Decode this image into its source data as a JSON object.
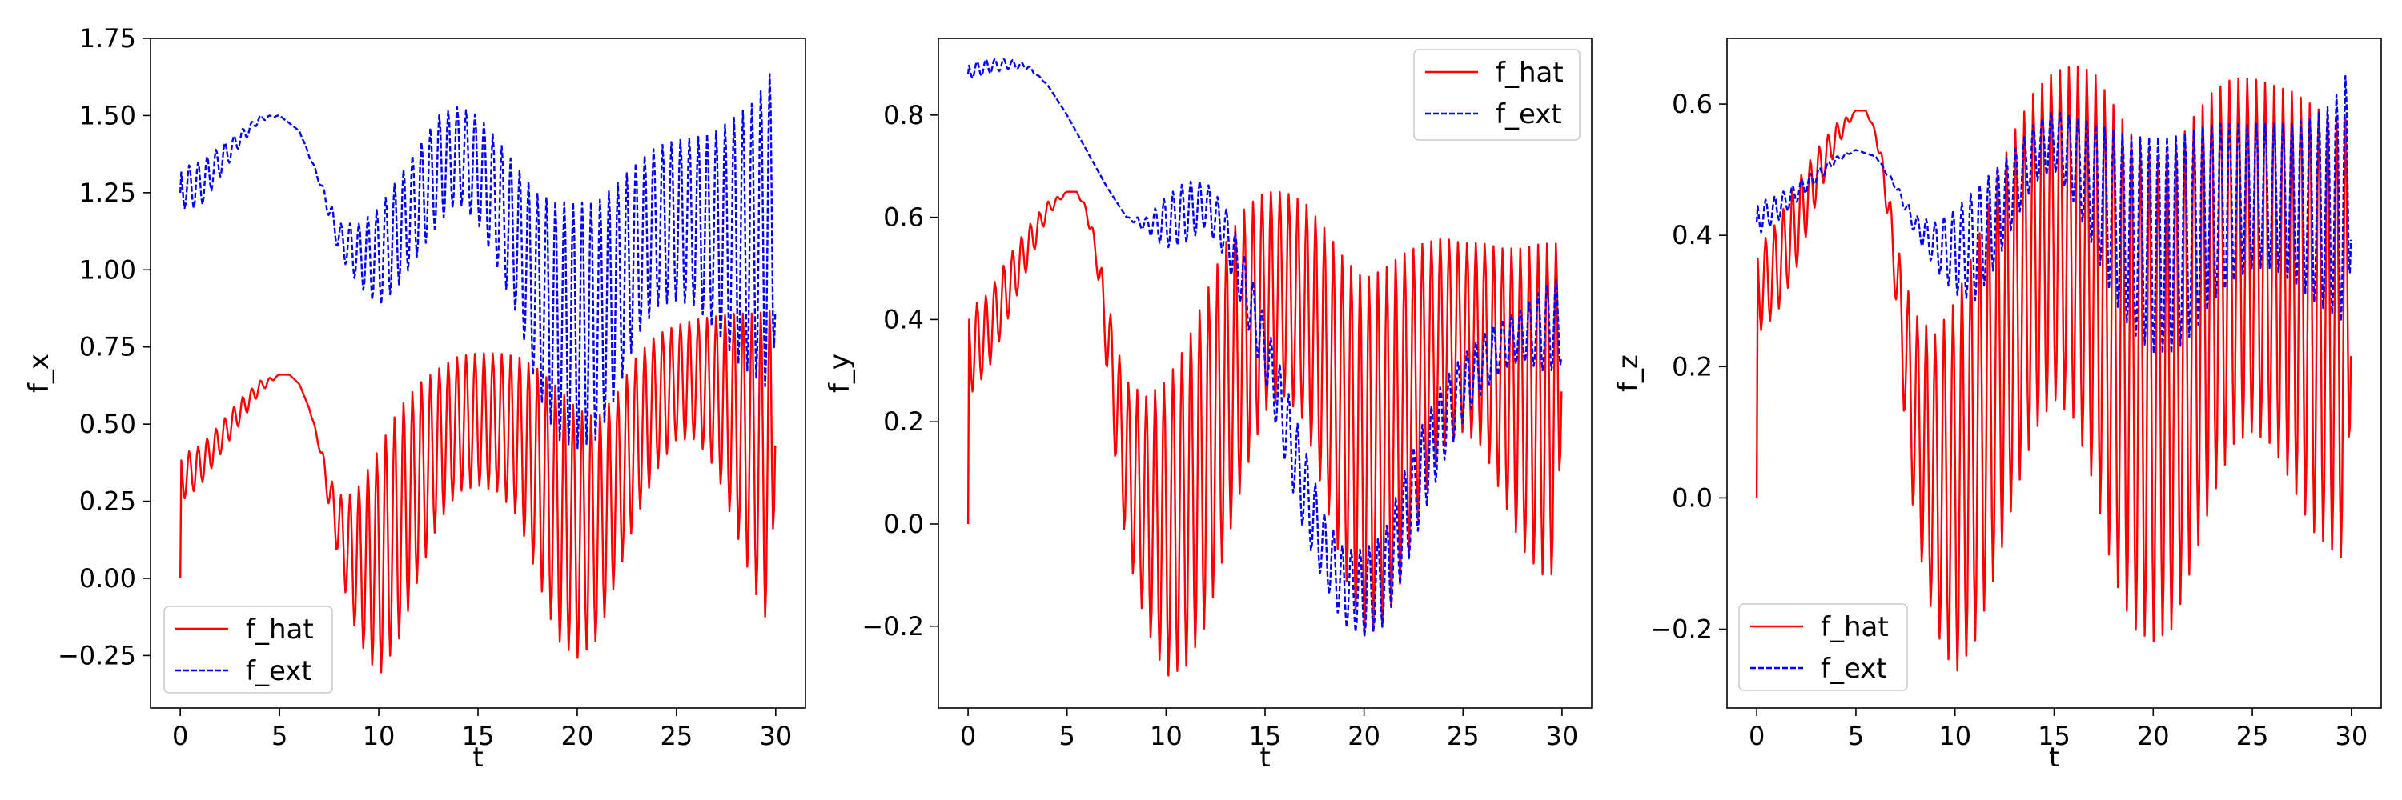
{
  "chart_data": [
    {
      "type": "line",
      "title": "",
      "xlabel": "t",
      "ylabel": "f_x",
      "xlim": [
        -1.5,
        31.5
      ],
      "ylim": [
        -0.42,
        1.75
      ],
      "xticks": [
        0,
        5,
        10,
        15,
        20,
        25,
        30
      ],
      "xtick_labels": [
        "0",
        "5",
        "10",
        "15",
        "20",
        "25",
        "30"
      ],
      "yticks": [
        -0.25,
        0.0,
        0.25,
        0.5,
        0.75,
        1.0,
        1.25,
        1.5,
        1.75
      ],
      "ytick_labels": [
        "−0.25",
        "0.00",
        "0.25",
        "0.50",
        "0.75",
        "1.00",
        "1.25",
        "1.50",
        "1.75"
      ],
      "legend_placement": "lower-left",
      "grid": false,
      "series": [
        {
          "name": "f_hat",
          "color": "#ff0000",
          "linestyle": "solid",
          "start_value": 0.0,
          "oscillation_period": 0.45,
          "envelope_x": [
            0.05,
            1,
            2,
            3,
            4,
            5,
            5.5,
            6,
            6.5,
            7,
            7.3,
            7.6,
            8,
            8.5,
            9,
            10,
            11,
            12,
            13,
            14,
            15,
            16,
            17,
            18,
            19,
            20,
            21,
            22,
            23,
            24,
            25,
            26,
            27,
            28,
            29,
            29.8,
            30
          ],
          "envelope_upper": [
            0.4,
            0.43,
            0.5,
            0.58,
            0.64,
            0.66,
            0.66,
            0.63,
            0.55,
            0.45,
            0.38,
            0.32,
            0.27,
            0.27,
            0.3,
            0.42,
            0.55,
            0.63,
            0.68,
            0.72,
            0.73,
            0.73,
            0.72,
            0.68,
            0.62,
            0.55,
            0.52,
            0.6,
            0.72,
            0.79,
            0.82,
            0.84,
            0.85,
            0.86,
            0.86,
            0.87,
            0.5
          ],
          "envelope_lower": [
            0.25,
            0.3,
            0.4,
            0.5,
            0.6,
            0.66,
            0.66,
            0.63,
            0.55,
            0.42,
            0.3,
            0.18,
            0.05,
            -0.1,
            -0.2,
            -0.32,
            -0.2,
            0.0,
            0.18,
            0.28,
            0.3,
            0.28,
            0.2,
            0.0,
            -0.2,
            -0.26,
            -0.2,
            0.0,
            0.2,
            0.35,
            0.45,
            0.45,
            0.35,
            0.15,
            -0.05,
            -0.18,
            0.5
          ]
        },
        {
          "name": "f_ext",
          "color": "#0000ff",
          "linestyle": "dashed",
          "start_value": 1.25,
          "oscillation_period": 0.45,
          "envelope_x": [
            0,
            1,
            2,
            3,
            4,
            5,
            6,
            7,
            8,
            9,
            10,
            11,
            12,
            13,
            14,
            15,
            16,
            17,
            18,
            19,
            20,
            21,
            22,
            23,
            24,
            25,
            26,
            27,
            28,
            29,
            29.8,
            30
          ],
          "envelope_upper": [
            1.33,
            1.35,
            1.4,
            1.45,
            1.5,
            1.5,
            1.45,
            1.3,
            1.15,
            1.15,
            1.2,
            1.3,
            1.4,
            1.5,
            1.53,
            1.5,
            1.42,
            1.33,
            1.25,
            1.22,
            1.22,
            1.22,
            1.28,
            1.35,
            1.4,
            1.42,
            1.43,
            1.45,
            1.5,
            1.55,
            1.65,
            1.15
          ],
          "envelope_lower": [
            1.2,
            1.2,
            1.3,
            1.4,
            1.48,
            1.5,
            1.45,
            1.28,
            1.05,
            0.95,
            0.88,
            0.95,
            1.05,
            1.15,
            1.22,
            1.15,
            1.0,
            0.85,
            0.6,
            0.45,
            0.42,
            0.45,
            0.6,
            0.78,
            0.88,
            0.9,
            0.88,
            0.8,
            0.7,
            0.65,
            0.6,
            0.85
          ]
        }
      ]
    },
    {
      "type": "line",
      "title": "",
      "xlabel": "t",
      "ylabel": "f_y",
      "xlim": [
        -1.5,
        31.5
      ],
      "ylim": [
        -0.36,
        0.95
      ],
      "xticks": [
        0,
        5,
        10,
        15,
        20,
        25,
        30
      ],
      "xtick_labels": [
        "0",
        "5",
        "10",
        "15",
        "20",
        "25",
        "30"
      ],
      "yticks": [
        -0.2,
        0.0,
        0.2,
        0.4,
        0.6,
        0.8
      ],
      "ytick_labels": [
        "−0.2",
        "0.0",
        "0.2",
        "0.4",
        "0.6",
        "0.8"
      ],
      "legend_placement": "upper-right",
      "grid": false,
      "series": [
        {
          "name": "f_hat",
          "color": "#ff0000",
          "linestyle": "solid",
          "start_value": 0.0,
          "oscillation_period": 0.45,
          "envelope_x": [
            0.05,
            1,
            2,
            3,
            4,
            5,
            5.5,
            6,
            6.5,
            7,
            7.5,
            8,
            9,
            10,
            11,
            12,
            13,
            14,
            15,
            16,
            17,
            18,
            19,
            20,
            21,
            22,
            23,
            24,
            25,
            26,
            27,
            28,
            29,
            29.8,
            30
          ],
          "envelope_upper": [
            0.42,
            0.45,
            0.52,
            0.58,
            0.63,
            0.65,
            0.65,
            0.62,
            0.55,
            0.45,
            0.35,
            0.28,
            0.25,
            0.28,
            0.35,
            0.45,
            0.55,
            0.62,
            0.65,
            0.65,
            0.63,
            0.58,
            0.52,
            0.48,
            0.5,
            0.53,
            0.55,
            0.56,
            0.55,
            0.55,
            0.54,
            0.54,
            0.55,
            0.55,
            0.3
          ],
          "envelope_lower": [
            0.25,
            0.3,
            0.4,
            0.5,
            0.6,
            0.65,
            0.65,
            0.6,
            0.5,
            0.3,
            0.1,
            -0.05,
            -0.2,
            -0.3,
            -0.28,
            -0.2,
            -0.05,
            0.1,
            0.22,
            0.25,
            0.2,
            0.05,
            -0.1,
            -0.22,
            -0.2,
            -0.1,
            0.05,
            0.15,
            0.18,
            0.15,
            0.05,
            -0.05,
            -0.1,
            -0.1,
            0.3
          ]
        },
        {
          "name": "f_ext",
          "color": "#0000ff",
          "linestyle": "dashed",
          "start_value": 0.88,
          "oscillation_period": 0.45,
          "envelope_x": [
            0,
            1,
            2,
            3,
            4,
            5,
            6,
            7,
            8,
            9,
            10,
            11,
            12,
            13,
            14,
            15,
            16,
            17,
            18,
            19,
            20,
            21,
            22,
            23,
            24,
            25,
            26,
            27,
            28,
            29,
            29.8,
            30
          ],
          "envelope_upper": [
            0.9,
            0.91,
            0.91,
            0.9,
            0.86,
            0.8,
            0.73,
            0.66,
            0.6,
            0.6,
            0.64,
            0.67,
            0.67,
            0.62,
            0.52,
            0.4,
            0.28,
            0.15,
            0.02,
            -0.05,
            -0.05,
            -0.02,
            0.1,
            0.2,
            0.28,
            0.33,
            0.37,
            0.4,
            0.42,
            0.46,
            0.48,
            0.38
          ],
          "envelope_lower": [
            0.87,
            0.88,
            0.89,
            0.89,
            0.86,
            0.8,
            0.73,
            0.66,
            0.6,
            0.57,
            0.54,
            0.55,
            0.58,
            0.52,
            0.4,
            0.28,
            0.12,
            -0.02,
            -0.12,
            -0.2,
            -0.22,
            -0.2,
            -0.1,
            0.02,
            0.12,
            0.2,
            0.26,
            0.3,
            0.32,
            0.3,
            0.3,
            0.32
          ]
        }
      ]
    },
    {
      "type": "line",
      "title": "",
      "xlabel": "t",
      "ylabel": "f_z",
      "xlim": [
        -1.5,
        31.5
      ],
      "ylim": [
        -0.32,
        0.7
      ],
      "xticks": [
        0,
        5,
        10,
        15,
        20,
        25,
        30
      ],
      "xtick_labels": [
        "0",
        "5",
        "10",
        "15",
        "20",
        "25",
        "30"
      ],
      "yticks": [
        -0.2,
        0.0,
        0.2,
        0.4,
        0.6
      ],
      "ytick_labels": [
        "−0.2",
        "0.0",
        "0.2",
        "0.4",
        "0.6"
      ],
      "legend_placement": "lower-left",
      "grid": false,
      "series": [
        {
          "name": "f_hat",
          "color": "#ff0000",
          "linestyle": "solid",
          "start_value": 0.0,
          "oscillation_period": 0.45,
          "envelope_x": [
            0.05,
            1,
            2,
            3,
            4,
            5,
            5.5,
            6,
            6.5,
            7,
            7.5,
            8,
            9,
            10,
            11,
            12,
            13,
            14,
            15,
            16,
            17,
            18,
            19,
            20,
            21,
            22,
            23,
            24,
            25,
            26,
            27,
            28,
            29,
            29.8,
            30
          ],
          "envelope_upper": [
            0.38,
            0.42,
            0.48,
            0.53,
            0.57,
            0.59,
            0.59,
            0.56,
            0.5,
            0.4,
            0.33,
            0.28,
            0.25,
            0.3,
            0.38,
            0.48,
            0.56,
            0.62,
            0.65,
            0.66,
            0.65,
            0.6,
            0.55,
            0.52,
            0.53,
            0.58,
            0.62,
            0.64,
            0.64,
            0.63,
            0.62,
            0.6,
            0.58,
            0.58,
            0.25
          ],
          "envelope_lower": [
            0.25,
            0.28,
            0.35,
            0.45,
            0.53,
            0.59,
            0.59,
            0.55,
            0.45,
            0.3,
            0.1,
            -0.05,
            -0.2,
            -0.27,
            -0.22,
            -0.12,
            0.0,
            0.1,
            0.15,
            0.12,
            0.02,
            -0.12,
            -0.2,
            -0.22,
            -0.2,
            -0.1,
            0.0,
            0.08,
            0.1,
            0.08,
            0.02,
            -0.05,
            -0.08,
            -0.1,
            0.25
          ]
        },
        {
          "name": "f_ext",
          "color": "#0000ff",
          "linestyle": "dashed",
          "start_value": 0.42,
          "oscillation_period": 0.45,
          "envelope_x": [
            0,
            1,
            2,
            3,
            4,
            5,
            6,
            7,
            8,
            9,
            10,
            11,
            12,
            13,
            14,
            15,
            16,
            17,
            18,
            19,
            20,
            21,
            22,
            23,
            24,
            25,
            26,
            27,
            28,
            29,
            29.8,
            30
          ],
          "envelope_upper": [
            0.45,
            0.46,
            0.48,
            0.5,
            0.52,
            0.53,
            0.52,
            0.48,
            0.43,
            0.42,
            0.44,
            0.47,
            0.5,
            0.53,
            0.57,
            0.59,
            0.58,
            0.57,
            0.56,
            0.55,
            0.55,
            0.55,
            0.56,
            0.57,
            0.57,
            0.57,
            0.57,
            0.57,
            0.58,
            0.6,
            0.65,
            0.45
          ],
          "envelope_lower": [
            0.4,
            0.42,
            0.45,
            0.48,
            0.51,
            0.53,
            0.52,
            0.47,
            0.4,
            0.35,
            0.31,
            0.3,
            0.35,
            0.42,
            0.48,
            0.5,
            0.45,
            0.38,
            0.3,
            0.25,
            0.22,
            0.22,
            0.25,
            0.3,
            0.33,
            0.35,
            0.35,
            0.33,
            0.3,
            0.28,
            0.26,
            0.4
          ]
        }
      ]
    }
  ]
}
